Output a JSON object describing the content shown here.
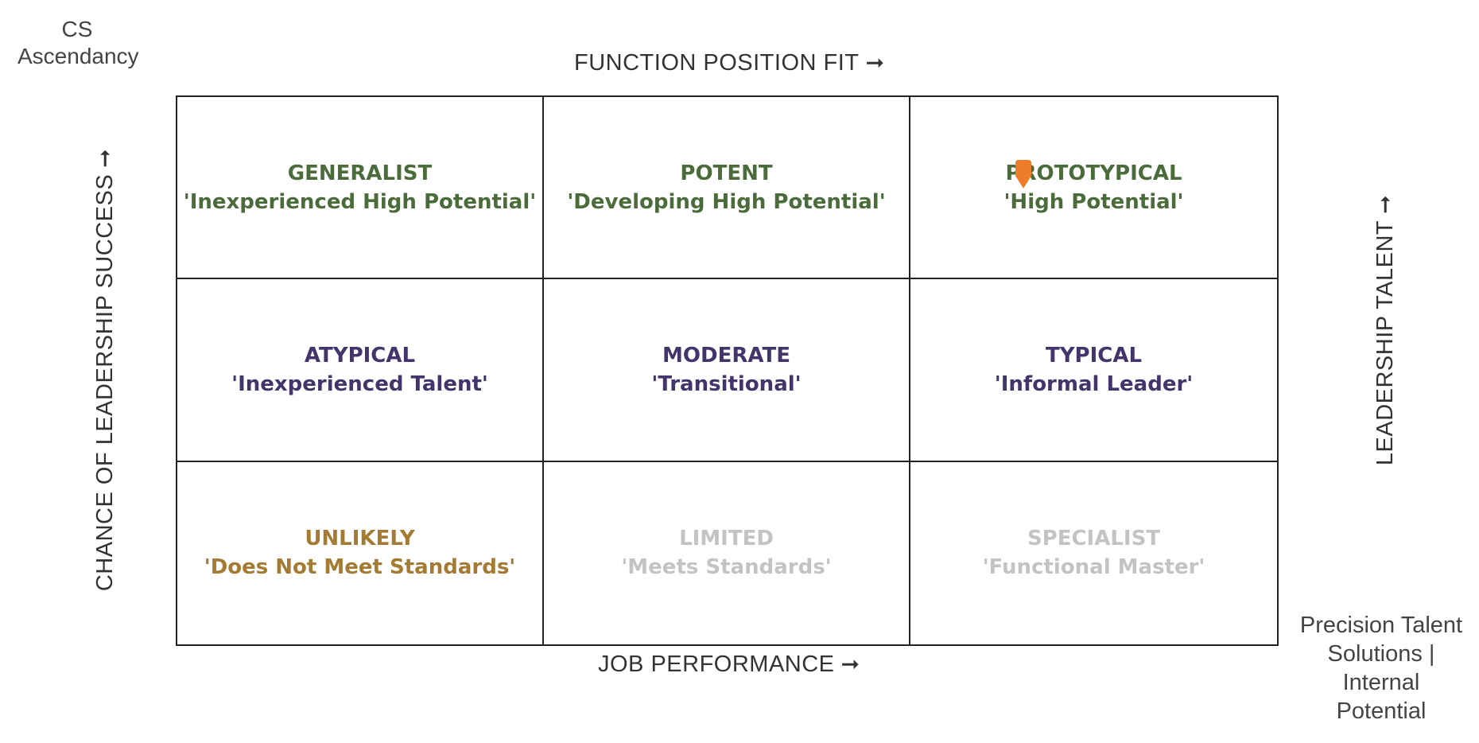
{
  "corner_title": "CS\nAscendancy",
  "corner_title_lines": [
    "CS",
    "Ascendancy"
  ],
  "axes": {
    "top": {
      "label": "FUNCTION POSITION FIT",
      "arrow": "➞"
    },
    "bottom": {
      "label": "JOB PERFORMANCE",
      "arrow": "➞"
    },
    "left": {
      "label": "CHANCE OF LEADERSHIP SUCCESS",
      "arrow": "➞"
    },
    "right": {
      "label": "LEADERSHIP TALENT",
      "arrow": "➞"
    }
  },
  "footer_lines": [
    "Precision Talent",
    "Solutions |",
    "Internal",
    "Potential"
  ],
  "colors": {
    "green": "#4a6b3a",
    "purple": "#43356b",
    "gold": "#a57a32",
    "grey": "#c3c3c3",
    "marker": "#ee7d2a"
  },
  "cells": [
    {
      "title": "GENERALIST",
      "subtitle": "'Inexperienced High Potential'",
      "color": "#4a6b3a"
    },
    {
      "title": "POTENT",
      "subtitle": "'Developing High Potential'",
      "color": "#4a6b3a"
    },
    {
      "title": "PROTOTYPICAL",
      "subtitle": "'High Potential'",
      "color": "#4a6b3a"
    },
    {
      "title": "ATYPICAL",
      "subtitle": "'Inexperienced Talent'",
      "color": "#43356b"
    },
    {
      "title": "MODERATE",
      "subtitle": "'Transitional'",
      "color": "#43356b"
    },
    {
      "title": "TYPICAL",
      "subtitle": "'Informal Leader'",
      "color": "#43356b"
    },
    {
      "title": "UNLIKELY",
      "subtitle": "'Does Not Meet Standards'",
      "color": "#a57a32"
    },
    {
      "title": "LIMITED",
      "subtitle": "'Meets Standards'",
      "color": "#c3c3c3"
    },
    {
      "title": "SPECIALIST",
      "subtitle": "'Functional Master'",
      "color": "#c3c3c3"
    }
  ],
  "marker": {
    "icon": "location-pin-icon",
    "cell": "PROTOTYPICAL"
  }
}
